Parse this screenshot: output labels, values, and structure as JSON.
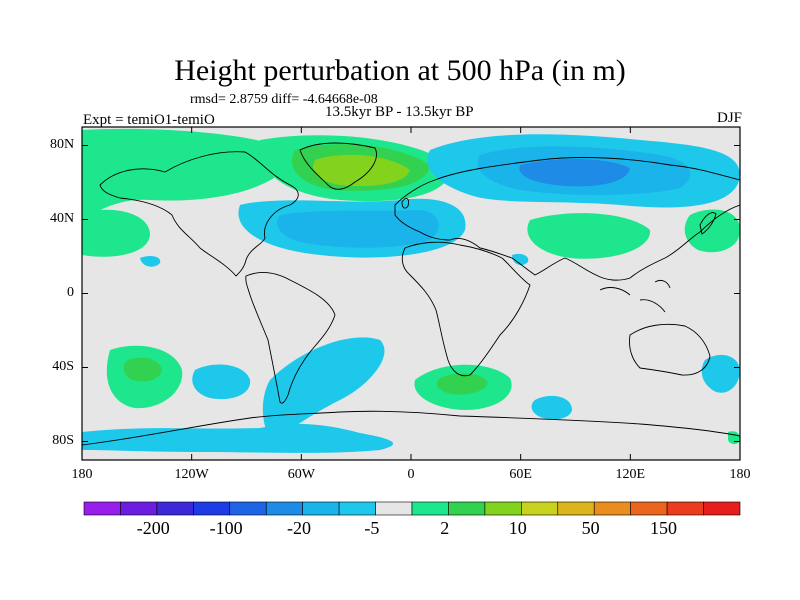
{
  "figure": {
    "title": "Height perturbation at 500 hPa (in m)",
    "stats": "rmsd= 2.8759 diff= -4.64668e-08",
    "experiment": "Expt = temiO1-temiO",
    "period": "13.5kyr BP - 13.5kyr BP",
    "season": "DJF"
  },
  "axes": {
    "lat_ticks": [
      "80N",
      "40N",
      "0",
      "40S",
      "80S"
    ],
    "lon_ticks": [
      "180",
      "120W",
      "60W",
      "0",
      "60E",
      "120E",
      "180"
    ]
  },
  "colorbar": {
    "colors": [
      "#9a1eeb",
      "#6c1ee0",
      "#3c28d8",
      "#1e3ce6",
      "#1e64e6",
      "#1e8ce6",
      "#1ab4eb",
      "#1ec8eb",
      "#e6e6e6",
      "#1ee68c",
      "#32d250",
      "#82d21e",
      "#c8d21e",
      "#dcb41e",
      "#eb8c1e",
      "#eb641e",
      "#eb3c1e",
      "#e61e1e"
    ],
    "labels": [
      "-200",
      "-100",
      "-20",
      "-5",
      "2",
      "10",
      "50",
      "150"
    ]
  },
  "anomalies": [
    {
      "lon": -162,
      "lat": 33,
      "level": 1
    },
    {
      "lon": -90,
      "lat": 75,
      "level": 1
    },
    {
      "lon": -35,
      "lat": 75,
      "level": 2
    },
    {
      "lon": -25,
      "lat": 73,
      "level": 3
    },
    {
      "lon": -45,
      "lat": 40,
      "level": -1
    },
    {
      "lon": -20,
      "lat": 38,
      "level": -2
    },
    {
      "lon": 80,
      "lat": 68,
      "level": -2
    },
    {
      "lon": 95,
      "lat": 68,
      "level": -3
    },
    {
      "lon": 110,
      "lat": 40,
      "level": 1
    },
    {
      "lon": 30,
      "lat": -47,
      "level": 1
    },
    {
      "lon": 30,
      "lat": -47,
      "level": 2
    },
    {
      "lon": -160,
      "lat": -42,
      "level": 1
    },
    {
      "lon": -160,
      "lat": -43,
      "level": 2
    },
    {
      "lon": -100,
      "lat": -48,
      "level": -1
    },
    {
      "lon": -50,
      "lat": -65,
      "level": -1
    }
  ]
}
